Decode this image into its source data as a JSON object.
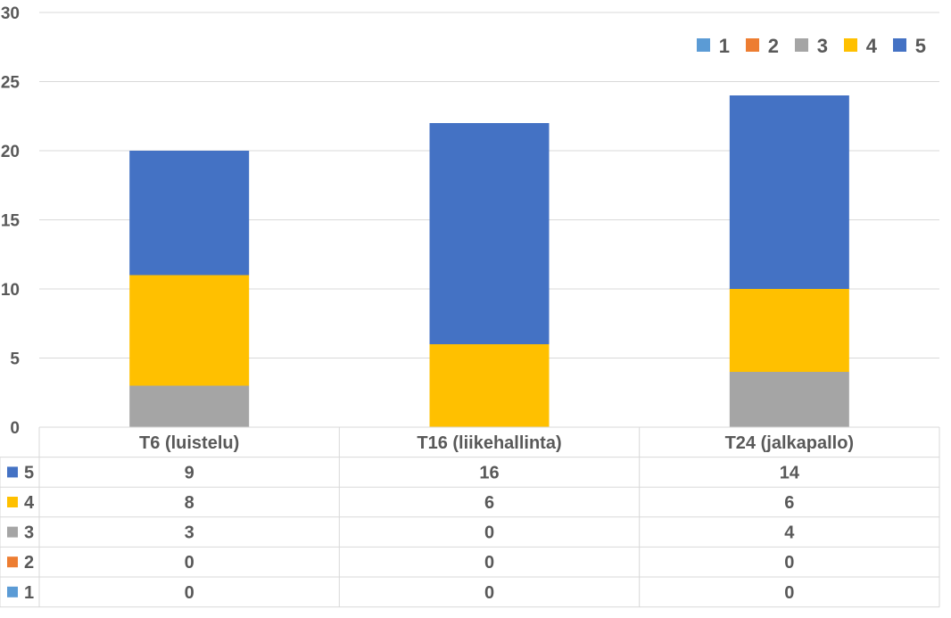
{
  "chart_data": {
    "type": "bar",
    "stacked": true,
    "title": "",
    "xlabel": "",
    "ylabel": "",
    "ylim": [
      0,
      30
    ],
    "yticks": [
      0,
      5,
      10,
      15,
      20,
      25,
      30
    ],
    "grid": true,
    "legend_position": "top-right",
    "categories": [
      "T6 (luistelu)",
      "T16 (liikehallinta)",
      "T24 (jalkapallo)"
    ],
    "series": [
      {
        "name": "1",
        "color": "#5B9BD5",
        "values": [
          0,
          0,
          0
        ]
      },
      {
        "name": "2",
        "color": "#ED7D31",
        "values": [
          0,
          0,
          0
        ]
      },
      {
        "name": "3",
        "color": "#A5A5A5",
        "values": [
          3,
          0,
          4
        ]
      },
      {
        "name": "4",
        "color": "#FFC000",
        "values": [
          8,
          6,
          6
        ]
      },
      {
        "name": "5",
        "color": "#4472C4",
        "values": [
          9,
          16,
          14
        ]
      }
    ],
    "data_table": {
      "row_order": [
        "5",
        "4",
        "3",
        "2",
        "1"
      ]
    }
  }
}
